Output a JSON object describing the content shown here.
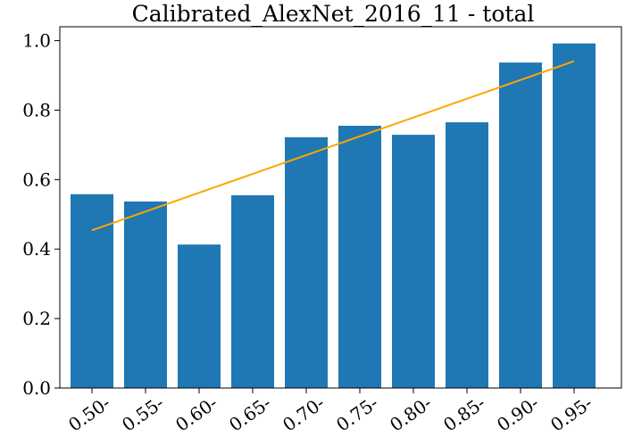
{
  "chart_data": {
    "type": "bar",
    "title": "Calibrated_AlexNet_2016_11 - total",
    "xlabel": "",
    "ylabel": "",
    "categories": [
      "0.50-",
      "0.55-",
      "0.60-",
      "0.65-",
      "0.70-",
      "0.75-",
      "0.80-",
      "0.85-",
      "0.90-",
      "0.95-"
    ],
    "values": [
      0.558,
      0.537,
      0.413,
      0.555,
      0.722,
      0.755,
      0.729,
      0.765,
      0.937,
      0.992
    ],
    "ylim": [
      0.0,
      1.04
    ],
    "yticks": [
      0.0,
      0.2,
      0.4,
      0.6,
      0.8,
      1.0
    ],
    "ytick_labels": [
      "0.0",
      "0.2",
      "0.4",
      "0.6",
      "0.8",
      "1.0"
    ],
    "reference_line": {
      "x_from": "0.50-",
      "x_to": "0.95-",
      "y_from": 0.454,
      "y_to": 0.941
    },
    "grid": false,
    "legend": "none",
    "colors": {
      "bar": "#1f77b4",
      "reference_line": "#ffa500"
    }
  }
}
